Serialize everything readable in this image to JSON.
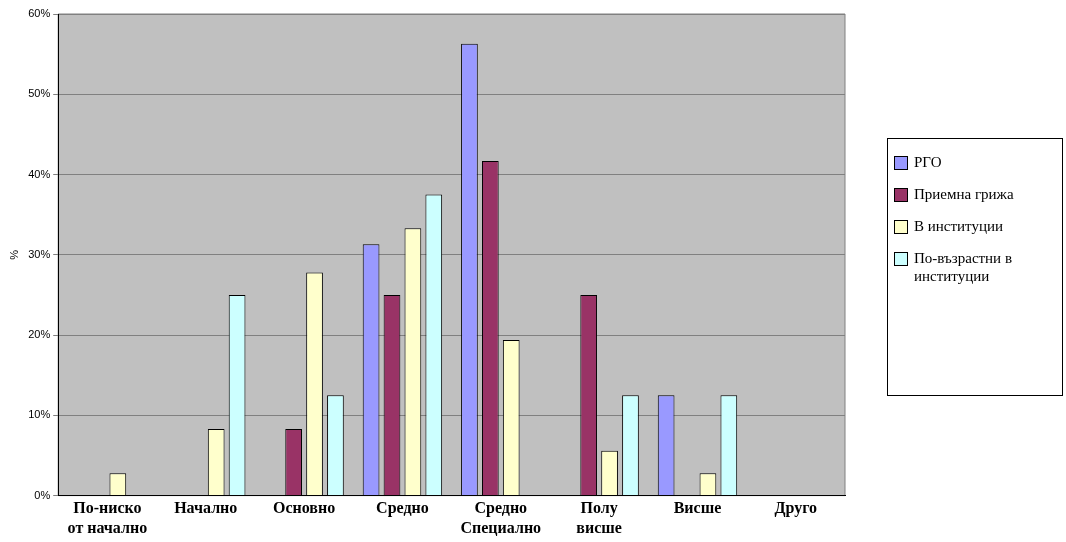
{
  "chart_data": {
    "type": "bar",
    "ylabel": "%",
    "categories": [
      "По-ниско от начално",
      "Начално",
      "Основно",
      "Средно",
      "Средно Специално",
      "Полу висше",
      "Висше",
      "Друго"
    ],
    "series": [
      {
        "name": "РГО",
        "color": "#9999ff",
        "values": [
          0,
          0,
          0,
          31.3,
          56.3,
          0,
          12.5,
          0
        ]
      },
      {
        "name": "Приемна грижа",
        "color": "#993366",
        "values": [
          0,
          0,
          8.3,
          25,
          41.7,
          25,
          0,
          0
        ]
      },
      {
        "name": "В институции",
        "color": "#ffffcc",
        "values": [
          2.8,
          8.3,
          27.8,
          33.3,
          19.4,
          5.6,
          2.8,
          0
        ]
      },
      {
        "name": "По-възрастни в институции",
        "color": "#ccffff",
        "values": [
          0,
          25,
          12.5,
          37.5,
          0,
          12.5,
          12.5,
          0
        ]
      }
    ],
    "ylim": [
      0,
      60
    ],
    "yticks": [
      {
        "value": 0,
        "label": "0%"
      },
      {
        "value": 10,
        "label": "10%"
      },
      {
        "value": 20,
        "label": "20%"
      },
      {
        "value": 30,
        "label": "30%"
      },
      {
        "value": 40,
        "label": "40%"
      },
      {
        "value": 50,
        "label": "50%"
      },
      {
        "value": 60,
        "label": "60%"
      }
    ],
    "grid": "y",
    "legend": "right"
  }
}
